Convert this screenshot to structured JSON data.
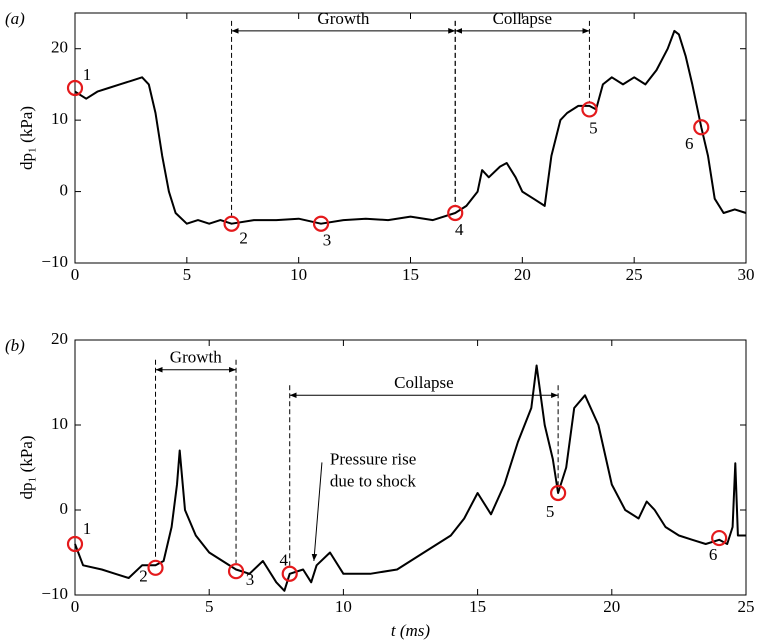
{
  "chart_data": [
    {
      "type": "line",
      "panel_label": "(a)",
      "ylabel": "dp₁ (kPa)",
      "color": "#000000",
      "marker_color": "#e41a1c",
      "xlim": [
        0,
        30
      ],
      "xticks": [
        0,
        5,
        10,
        15,
        20,
        25,
        30
      ],
      "ylim": [
        -10,
        25
      ],
      "yticks": [
        {
          "value": -10,
          "label": "−10"
        },
        0,
        10,
        20
      ],
      "x": [
        0,
        0.5,
        1,
        1.5,
        2,
        2.5,
        3,
        3.3,
        3.6,
        3.9,
        4.2,
        4.5,
        5,
        5.5,
        6,
        6.5,
        7,
        8,
        9,
        10,
        11,
        12,
        13,
        14,
        15,
        16,
        17,
        17.5,
        18,
        18.2,
        18.5,
        19,
        19.3,
        19.7,
        20,
        20.5,
        21,
        21.3,
        21.7,
        22,
        22.5,
        23,
        23.3,
        23.6,
        24,
        24.5,
        25,
        25.5,
        26,
        26.5,
        26.8,
        27,
        27.3,
        27.6,
        28,
        28.3,
        28.6,
        29,
        29.5,
        30
      ],
      "values": [
        14,
        13,
        14,
        14.5,
        15,
        15.5,
        16,
        15,
        11,
        5,
        0,
        -3,
        -4.5,
        -4,
        -4.5,
        -4,
        -4.5,
        -4,
        -4,
        -3.8,
        -4.5,
        -4,
        -3.8,
        -4,
        -3.5,
        -4,
        -3,
        -2,
        0,
        3,
        2,
        3.5,
        4,
        2,
        0,
        -1,
        -2,
        5,
        10,
        11,
        12,
        12,
        11.5,
        15,
        16,
        15,
        16,
        15,
        17,
        20,
        22.5,
        22,
        19,
        15,
        9,
        5,
        -1,
        -3,
        -2.5,
        -3
      ],
      "markers": [
        {
          "label": "1",
          "x": 0,
          "y": 14.5
        },
        {
          "label": "2",
          "x": 7,
          "y": -4.5
        },
        {
          "label": "3",
          "x": 11,
          "y": -4.5
        },
        {
          "label": "4",
          "x": 17,
          "y": -3
        },
        {
          "label": "5",
          "x": 23,
          "y": 11.5
        },
        {
          "label": "6",
          "x": 28,
          "y": 9
        }
      ],
      "spans": [
        {
          "label": "Growth",
          "x0": 7,
          "x1": 17,
          "y": 22.5
        },
        {
          "label": "Collapse",
          "x0": 17,
          "x1": 23,
          "y": 22.5
        }
      ]
    },
    {
      "type": "line",
      "panel_label": "(b)",
      "ylabel": "dp₁ (kPa)",
      "xlabel": "t (ms)",
      "color": "#000000",
      "marker_color": "#e41a1c",
      "xlim": [
        0,
        25
      ],
      "xticks": [
        0,
        5,
        10,
        15,
        20,
        25
      ],
      "ylim": [
        -10,
        20
      ],
      "yticks": [
        {
          "value": -10,
          "label": "−10"
        },
        0,
        10,
        20
      ],
      "x": [
        0,
        0.3,
        1,
        1.5,
        2,
        2.5,
        3,
        3.3,
        3.6,
        3.8,
        3.9,
        4.1,
        4.5,
        5,
        5.5,
        6,
        6.5,
        7,
        7.5,
        7.8,
        8,
        8.5,
        8.8,
        9,
        9.5,
        10,
        11,
        12,
        13,
        14,
        14.5,
        15,
        15.5,
        16,
        16.5,
        17,
        17.2,
        17.5,
        17.8,
        18,
        18.3,
        18.6,
        19,
        19.5,
        20,
        20.5,
        21,
        21.3,
        21.6,
        22,
        22.5,
        23,
        23.5,
        24,
        24.3,
        24.5,
        24.6,
        24.7,
        25
      ],
      "values": [
        -4,
        -6.5,
        -7,
        -7.5,
        -8,
        -6.5,
        -6.5,
        -6,
        -2,
        3,
        7,
        0,
        -3,
        -5,
        -6,
        -7,
        -7.5,
        -6,
        -8.5,
        -9.5,
        -7.5,
        -7,
        -8.5,
        -6.5,
        -5,
        -7.5,
        -7.5,
        -7,
        -5,
        -3,
        -1,
        2,
        -0.5,
        3,
        8,
        12,
        17,
        10,
        6,
        2,
        5,
        12,
        13.5,
        10,
        3,
        0,
        -1,
        1,
        0,
        -2,
        -3,
        -3.5,
        -4,
        -3.5,
        -4,
        -2,
        5.5,
        -3,
        -3
      ],
      "markers": [
        {
          "label": "1",
          "x": 0,
          "y": -4
        },
        {
          "label": "2",
          "x": 3,
          "y": -6.8
        },
        {
          "label": "3",
          "x": 6,
          "y": -7.2
        },
        {
          "label": "4",
          "x": 8,
          "y": -7.5
        },
        {
          "label": "5",
          "x": 18,
          "y": 2
        },
        {
          "label": "6",
          "x": 24,
          "y": -3.3
        }
      ],
      "spans": [
        {
          "label": "Growth",
          "x0": 3,
          "x1": 6,
          "y": 16.5
        },
        {
          "label": "Collapse",
          "x0": 8,
          "x1": 18,
          "y": 13.5
        }
      ],
      "annotation": {
        "lines": [
          "Pressure rise",
          "due to shock"
        ],
        "xy": [
          8.9,
          -6
        ],
        "xytext": [
          9.2,
          5.6
        ]
      }
    }
  ]
}
